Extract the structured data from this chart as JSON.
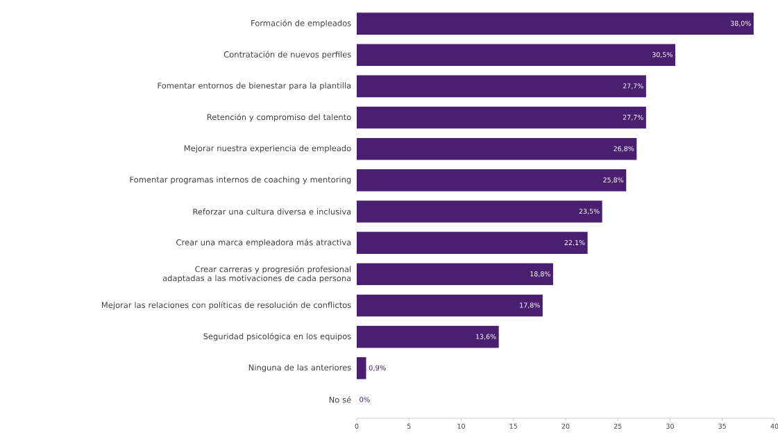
{
  "chart_data": {
    "type": "bar",
    "orientation": "horizontal",
    "categories": [
      "Formación de empleados",
      "Contratación de nuevos perfiles",
      "Fomentar entornos de bienestar para la plantilla",
      "Retención y compromiso del talento",
      "Mejorar nuestra experiencia de empleado",
      "Fomentar programas internos de coaching y mentoring",
      "Reforzar una cultura diversa e inclusiva",
      "Crear una marca empleadora más atractiva",
      "Crear carreras y progresión profesional adaptadas a las motivaciones de cada persona",
      "Mejorar las relaciones con políticas de resolución de conflictos",
      "Seguridad psicológica en los equipos",
      "Ninguna de las anteriores",
      "No sé"
    ],
    "values": [
      38.0,
      30.5,
      27.7,
      27.7,
      26.8,
      25.8,
      23.5,
      22.1,
      18.8,
      17.8,
      13.6,
      0.9,
      0
    ],
    "value_labels": [
      "38,0%",
      "30,5%",
      "27,7%",
      "27,7%",
      "26,8%",
      "25,8%",
      "23,5%",
      "22,1%",
      "18,8%",
      "17,8%",
      "13,6%",
      "0,9%",
      "0%"
    ],
    "color": "#4b1f6f",
    "xlim": [
      0,
      40
    ],
    "xticks": [
      0,
      5,
      10,
      15,
      20,
      25,
      30,
      35,
      40
    ],
    "grid": false
  }
}
